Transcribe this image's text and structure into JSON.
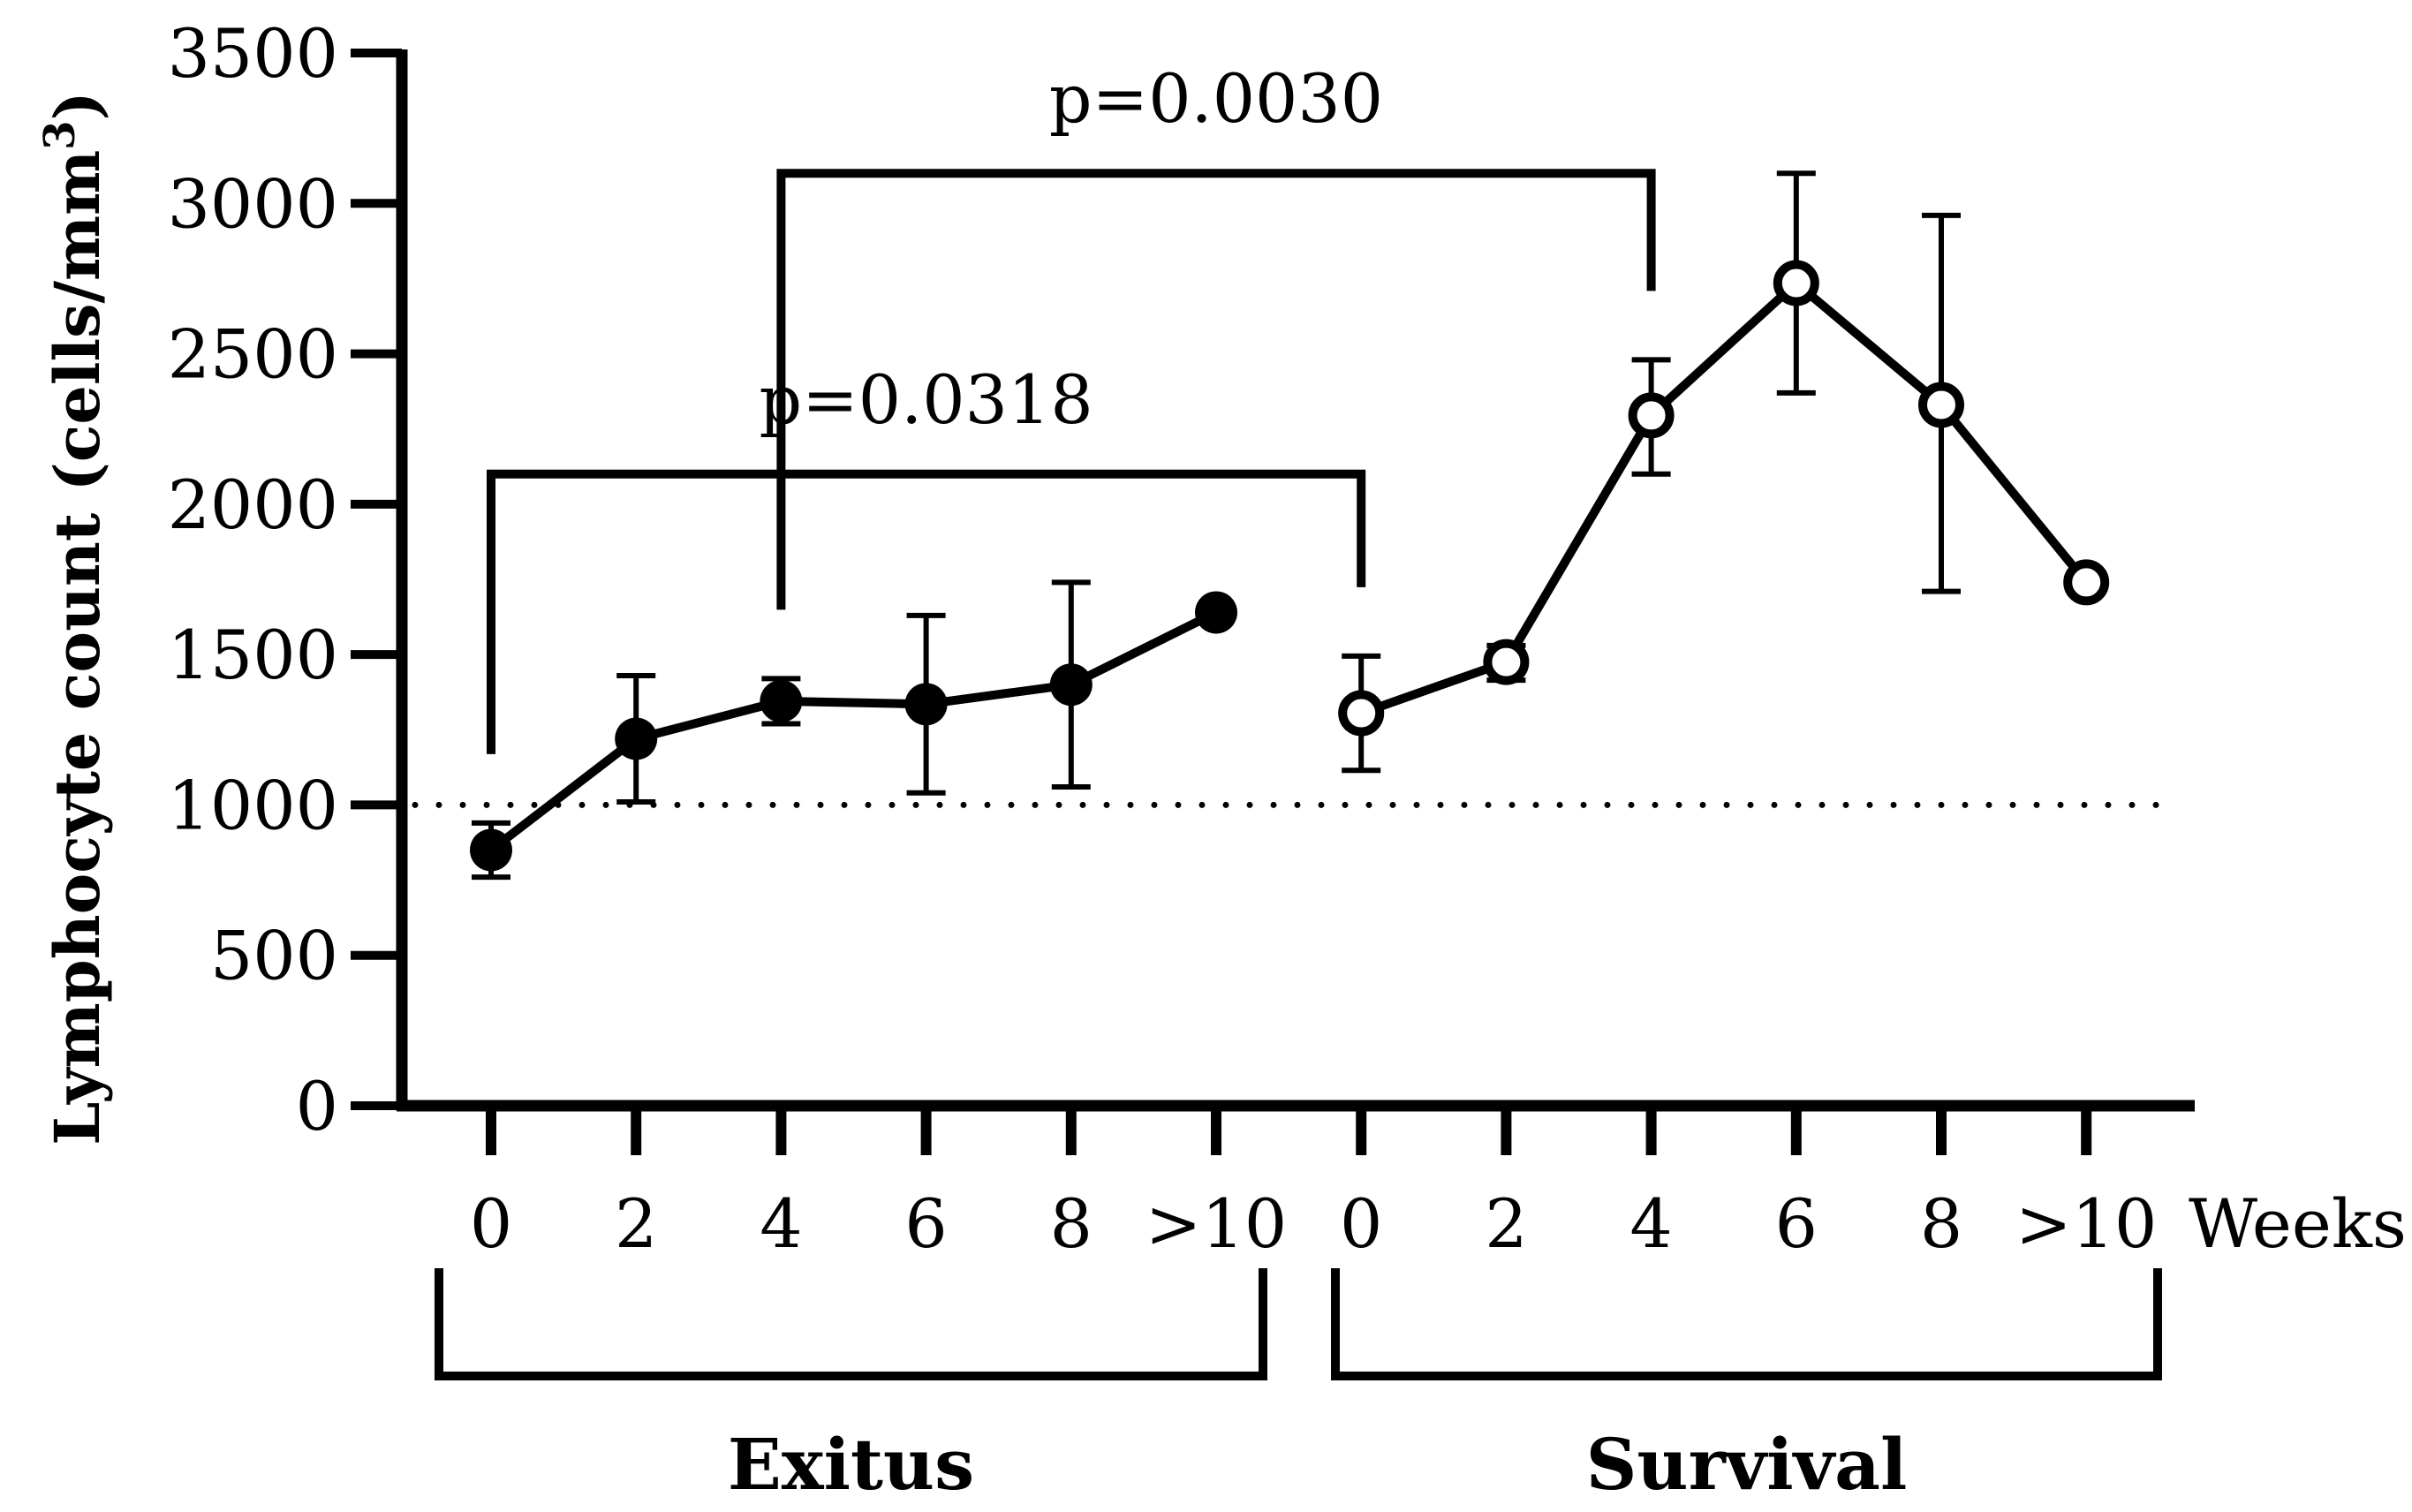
{
  "chart_data": {
    "type": "line",
    "ylabel": "Lymphocyte count (cells/mm",
    "ylabel_superscript": "3",
    "ylabel_close": ")",
    "ylim": [
      0,
      3500
    ],
    "yticks": [
      0,
      500,
      1000,
      1500,
      2000,
      2500,
      3000,
      3500
    ],
    "x_unit_label": "Weeks",
    "reference_line": 1000,
    "series": [
      {
        "name": "Exitus",
        "marker": "filled",
        "categories": [
          "0",
          "2",
          "4",
          "6",
          "8",
          ">10"
        ],
        "values": [
          850,
          1220,
          1345,
          1335,
          1400,
          1640
        ],
        "err_low": [
          760,
          1010,
          1270,
          1040,
          1060,
          null
        ],
        "err_high": [
          940,
          1430,
          1420,
          1630,
          1740,
          null
        ]
      },
      {
        "name": "Survival",
        "marker": "open",
        "categories": [
          "0",
          "2",
          "4",
          "6",
          "8",
          ">10"
        ],
        "values": [
          1305,
          1475,
          2295,
          2735,
          2330,
          1740
        ],
        "err_low": [
          1115,
          1415,
          2100,
          2370,
          1710,
          null
        ],
        "err_high": [
          1495,
          1530,
          2480,
          3100,
          2960,
          null
        ]
      }
    ],
    "annotations": [
      {
        "text": "p=0.0318",
        "from": {
          "series": 0,
          "index": 0
        },
        "to": {
          "series": 1,
          "index": 0
        },
        "level": 2100
      },
      {
        "text": "p=0.0030",
        "from": {
          "series": 0,
          "index": 2
        },
        "to": {
          "series": 1,
          "index": 2
        },
        "level": 3100
      }
    ]
  }
}
